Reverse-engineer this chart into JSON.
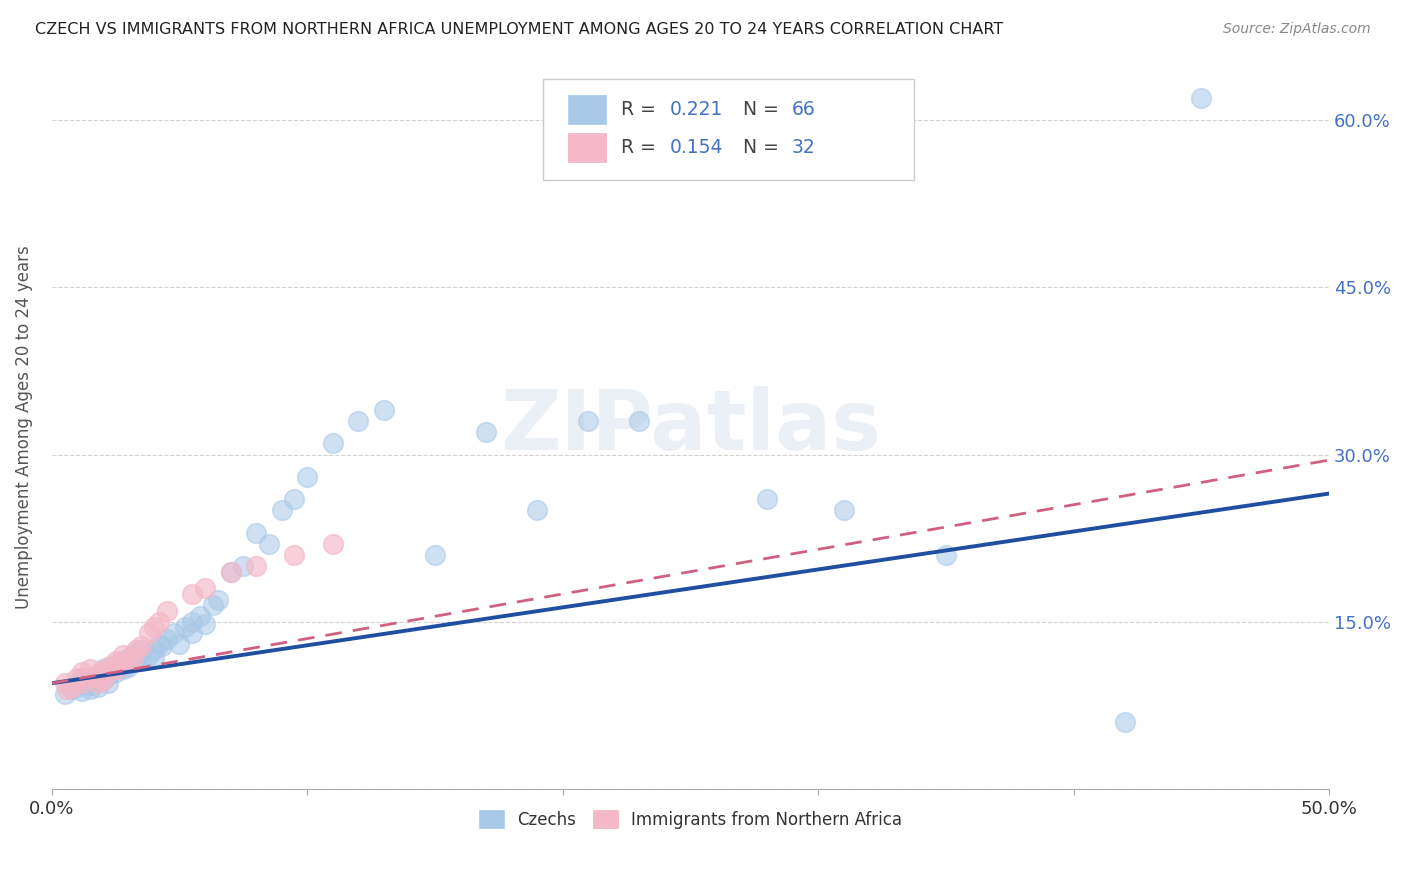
{
  "title": "CZECH VS IMMIGRANTS FROM NORTHERN AFRICA UNEMPLOYMENT AMONG AGES 20 TO 24 YEARS CORRELATION CHART",
  "source": "Source: ZipAtlas.com",
  "ylabel": "Unemployment Among Ages 20 to 24 years",
  "xlim": [
    0.0,
    0.5
  ],
  "ylim": [
    0.0,
    0.65
  ],
  "y_ticks_right": [
    0.0,
    0.15,
    0.3,
    0.45,
    0.6
  ],
  "y_tick_labels_right": [
    "",
    "15.0%",
    "30.0%",
    "45.0%",
    "60.0%"
  ],
  "czech_R": 0.221,
  "czech_N": 66,
  "immig_R": 0.154,
  "immig_N": 32,
  "watermark": "ZIPatlas",
  "blue_color": "#a8c8e8",
  "pink_color": "#f4b8c8",
  "line_blue": "#1f4fa0",
  "line_pink": "#d06080",
  "czech_x": [
    0.005,
    0.008,
    0.01,
    0.01,
    0.012,
    0.012,
    0.013,
    0.013,
    0.015,
    0.015,
    0.015,
    0.018,
    0.018,
    0.019,
    0.02,
    0.02,
    0.02,
    0.022,
    0.022,
    0.023,
    0.025,
    0.025,
    0.028,
    0.028,
    0.03,
    0.03,
    0.032,
    0.032,
    0.033,
    0.035,
    0.035,
    0.038,
    0.04,
    0.04,
    0.042,
    0.043,
    0.045,
    0.048,
    0.05,
    0.052,
    0.055,
    0.055,
    0.058,
    0.06,
    0.063,
    0.065,
    0.07,
    0.075,
    0.08,
    0.085,
    0.09,
    0.095,
    0.1,
    0.11,
    0.12,
    0.13,
    0.15,
    0.17,
    0.19,
    0.21,
    0.23,
    0.28,
    0.31,
    0.35,
    0.42,
    0.45
  ],
  "czech_y": [
    0.085,
    0.09,
    0.092,
    0.095,
    0.088,
    0.1,
    0.095,
    0.098,
    0.09,
    0.093,
    0.098,
    0.092,
    0.097,
    0.1,
    0.098,
    0.105,
    0.108,
    0.095,
    0.102,
    0.11,
    0.105,
    0.112,
    0.108,
    0.115,
    0.11,
    0.118,
    0.115,
    0.12,
    0.118,
    0.115,
    0.125,
    0.12,
    0.118,
    0.125,
    0.13,
    0.128,
    0.135,
    0.14,
    0.13,
    0.145,
    0.14,
    0.15,
    0.155,
    0.148,
    0.165,
    0.17,
    0.195,
    0.2,
    0.23,
    0.22,
    0.25,
    0.26,
    0.28,
    0.31,
    0.33,
    0.34,
    0.21,
    0.32,
    0.25,
    0.33,
    0.33,
    0.26,
    0.25,
    0.21,
    0.06,
    0.62
  ],
  "immig_x": [
    0.005,
    0.006,
    0.008,
    0.01,
    0.012,
    0.012,
    0.013,
    0.015,
    0.018,
    0.018,
    0.019,
    0.02,
    0.022,
    0.022,
    0.025,
    0.025,
    0.028,
    0.028,
    0.03,
    0.032,
    0.033,
    0.035,
    0.038,
    0.04,
    0.042,
    0.045,
    0.055,
    0.06,
    0.07,
    0.08,
    0.095,
    0.11
  ],
  "immig_y": [
    0.095,
    0.09,
    0.092,
    0.1,
    0.095,
    0.105,
    0.1,
    0.108,
    0.095,
    0.1,
    0.105,
    0.098,
    0.105,
    0.11,
    0.108,
    0.115,
    0.112,
    0.12,
    0.115,
    0.118,
    0.125,
    0.128,
    0.14,
    0.145,
    0.15,
    0.16,
    0.175,
    0.18,
    0.195,
    0.2,
    0.21,
    0.22
  ]
}
